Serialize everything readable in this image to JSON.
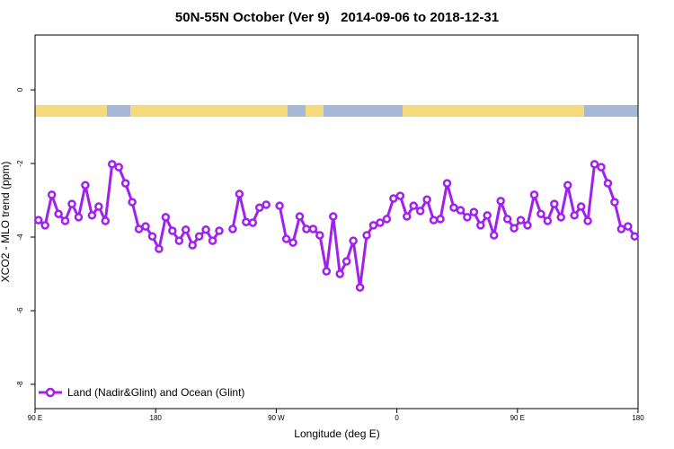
{
  "chart_data": {
    "type": "line",
    "title": "50N-55N October (Ver 9)   2014-09-06 to 2018-12-31",
    "x_label": "Longitude (deg E)",
    "y_label": "XCO2 - MLO trend (ppm)",
    "legend": "bottom-left",
    "xlim": [
      90,
      540
    ],
    "ylim": [
      -8.66,
      1.49
    ],
    "xticks": [
      {
        "value": 90,
        "label": "90 E"
      },
      {
        "value": 180,
        "label": "180"
      },
      {
        "value": 270,
        "label": "90 W"
      },
      {
        "value": 360,
        "label": "0"
      },
      {
        "value": 450,
        "label": "90 E"
      },
      {
        "value": 540,
        "label": "180"
      }
    ],
    "yticks": [
      0,
      -2,
      -4,
      -6,
      -8
    ],
    "x": [
      92.5,
      97.5,
      102.5,
      107.5,
      112.5,
      117.5,
      122.5,
      127.5,
      132.5,
      137.5,
      142.5,
      147.5,
      152.5,
      157.5,
      162.5,
      167.5,
      172.5,
      177.5,
      182.5,
      187.5,
      192.5,
      197.5,
      202.5,
      207.5,
      212.5,
      217.5,
      222.5,
      227.5,
      232.5,
      237.5,
      242.5,
      247.5,
      252.5,
      257.5,
      262.5,
      267.5,
      272.5,
      277.5,
      282.5,
      287.5,
      292.5,
      297.5,
      302.5,
      307.5,
      312.5,
      317.5,
      322.5,
      327.5,
      332.5,
      337.5,
      342.5,
      347.5,
      352.5,
      357.5,
      362.5,
      367.5,
      372.5,
      377.5,
      382.5,
      387.5,
      392.5,
      397.5,
      402.5,
      407.5,
      412.5,
      417.5,
      422.5,
      427.5,
      432.5,
      437.5,
      442.5,
      447.5,
      452.5,
      457.5,
      462.5,
      467.5,
      472.5,
      477.5,
      482.5,
      487.5,
      492.5,
      497.5,
      502.5,
      507.5,
      512.5,
      517.5,
      522.5,
      527.5,
      532.5,
      537.5
    ],
    "series": [
      {
        "name": "Land (Nadir&Glint) and Ocean (Glint)",
        "color": "#a020f0",
        "values": [
          -3.54,
          -3.68,
          -2.85,
          -3.37,
          -3.56,
          -3.1,
          -3.46,
          -2.59,
          -3.41,
          -3.17,
          -3.56,
          -2.02,
          -2.1,
          -2.54,
          -3.05,
          -3.78,
          -3.71,
          -3.98,
          -4.32,
          -3.46,
          -3.83,
          -4.1,
          -3.8,
          -4.22,
          -3.98,
          -3.8,
          -4.1,
          -3.83,
          null,
          -3.78,
          -2.83,
          -3.59,
          -3.61,
          -3.2,
          -3.12,
          null,
          -3.15,
          -4.05,
          -4.15,
          -3.44,
          -3.78,
          -3.78,
          -3.95,
          -4.93,
          -3.44,
          -5.0,
          -4.66,
          -4.1,
          -5.37,
          -3.95,
          -3.68,
          -3.61,
          -3.51,
          -2.95,
          -2.88,
          -3.44,
          -3.15,
          -3.29,
          -2.98,
          -3.54,
          -3.51,
          -2.54,
          -3.2,
          -3.27,
          -3.46,
          -3.32,
          -3.68,
          -3.41,
          -3.95,
          -3.02,
          -3.51,
          -3.76,
          -3.54,
          -3.68,
          -2.85,
          -3.37,
          -3.56,
          -3.1,
          -3.46,
          -2.59,
          -3.41,
          -3.17,
          -3.56,
          -2.02,
          -2.1,
          -2.54,
          -3.05,
          -3.78,
          -3.71,
          -3.98
        ]
      }
    ]
  }
}
